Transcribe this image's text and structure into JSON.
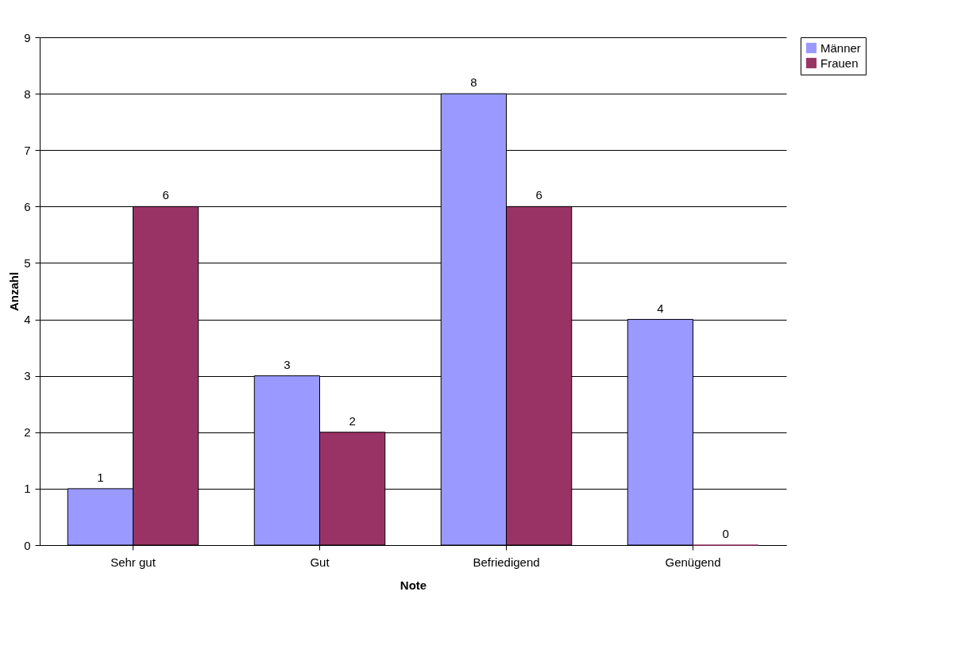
{
  "chart_data": {
    "type": "bar",
    "xlabel": "Note",
    "ylabel": "Anzahl",
    "categories": [
      "Sehr gut",
      "Gut",
      "Befriedigend",
      "Genügend"
    ],
    "series": [
      {
        "name": "Männer",
        "color": "#9999ff",
        "values": [
          1,
          3,
          8,
          4
        ]
      },
      {
        "name": "Frauen",
        "color": "#993366",
        "values": [
          6,
          2,
          6,
          0
        ]
      }
    ],
    "ylim": [
      0,
      9
    ],
    "yticks": [
      0,
      1,
      2,
      3,
      4,
      5,
      6,
      7,
      8,
      9
    ],
    "grid": "y",
    "legend": "right",
    "data_labels": true
  }
}
